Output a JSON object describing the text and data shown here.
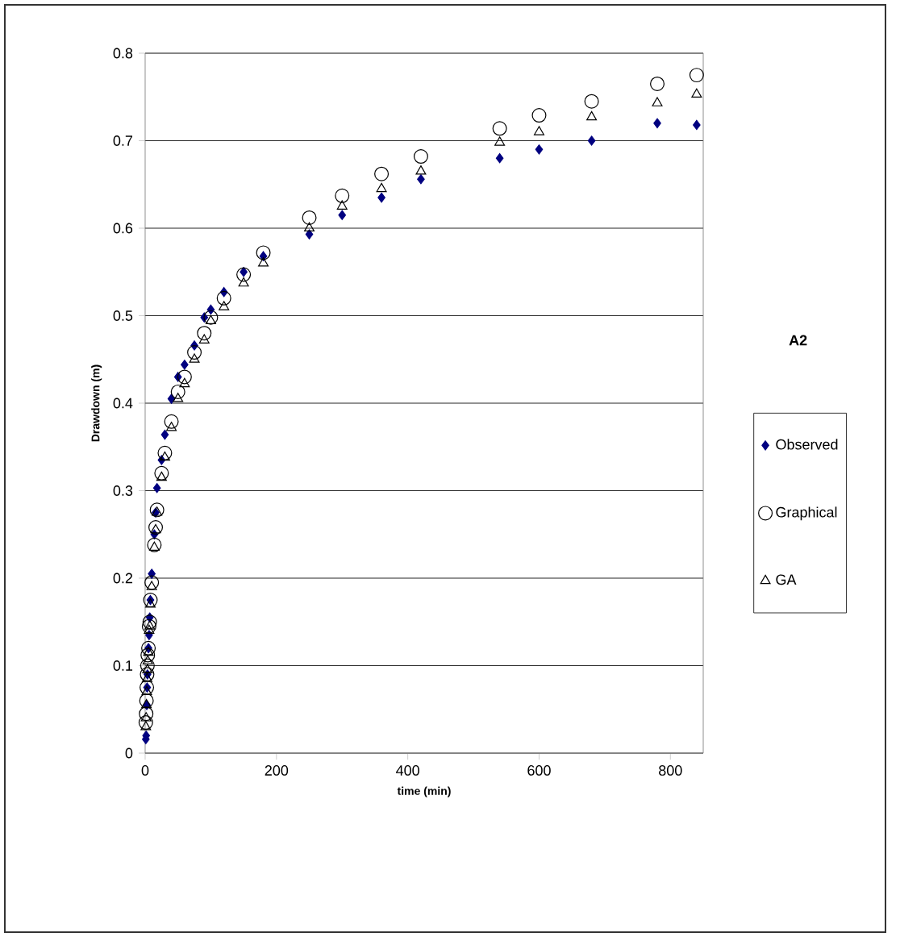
{
  "chart_data": {
    "type": "scatter",
    "xlabel": "time (min)",
    "ylabel": "Drawdown (m)",
    "legend_title": "A2",
    "x": [
      1,
      1.5,
      2,
      2.5,
      3,
      3.5,
      4,
      5,
      6,
      7,
      8,
      10,
      14,
      16,
      18,
      25,
      30,
      40,
      50,
      60,
      75,
      90,
      100,
      120,
      150,
      180,
      250,
      300,
      360,
      420,
      540,
      600,
      680,
      780,
      840
    ],
    "series": [
      {
        "name": "Observed",
        "color": "#000080",
        "marker": "diamond",
        "values": [
          0.016,
          0.02,
          null,
          0.055,
          0.075,
          0.09,
          null,
          0.12,
          0.135,
          0.155,
          0.175,
          0.205,
          0.25,
          0.275,
          0.303,
          0.335,
          0.364,
          0.405,
          0.43,
          0.444,
          0.466,
          0.498,
          0.507,
          0.527,
          0.55,
          0.568,
          0.593,
          0.615,
          0.635,
          0.656,
          0.68,
          0.69,
          0.7,
          0.72,
          0.718
        ]
      },
      {
        "name": "Graphical",
        "color": "#000000",
        "marker": "circle",
        "values": [
          0.035,
          0.045,
          0.06,
          0.075,
          0.09,
          0.1,
          0.112,
          0.12,
          0.145,
          0.15,
          0.175,
          0.195,
          0.238,
          0.258,
          0.278,
          0.32,
          0.343,
          0.379,
          0.413,
          0.43,
          0.458,
          0.48,
          0.498,
          0.52,
          0.547,
          0.572,
          0.612,
          0.637,
          0.662,
          0.682,
          0.714,
          0.729,
          0.745,
          0.765,
          0.775
        ]
      },
      {
        "name": "GA",
        "color": "#000000",
        "marker": "triangle",
        "values": [
          0.03,
          0.04,
          0.055,
          0.07,
          0.085,
          0.095,
          0.105,
          0.115,
          0.14,
          0.145,
          0.17,
          0.19,
          0.235,
          0.255,
          0.275,
          0.315,
          0.338,
          0.372,
          0.405,
          0.422,
          0.45,
          0.472,
          0.494,
          0.51,
          0.537,
          0.56,
          0.6,
          0.625,
          0.645,
          0.665,
          0.698,
          0.71,
          0.727,
          0.743,
          0.753
        ]
      }
    ],
    "xlim": [
      0,
      850
    ],
    "xticks": [
      0,
      200,
      400,
      600,
      800
    ],
    "ylim": [
      0,
      0.8
    ],
    "yticks": [
      0,
      0.1,
      0.2,
      0.3,
      0.4,
      0.5,
      0.6,
      0.7,
      0.8
    ],
    "grid": "y",
    "legend": "right"
  }
}
